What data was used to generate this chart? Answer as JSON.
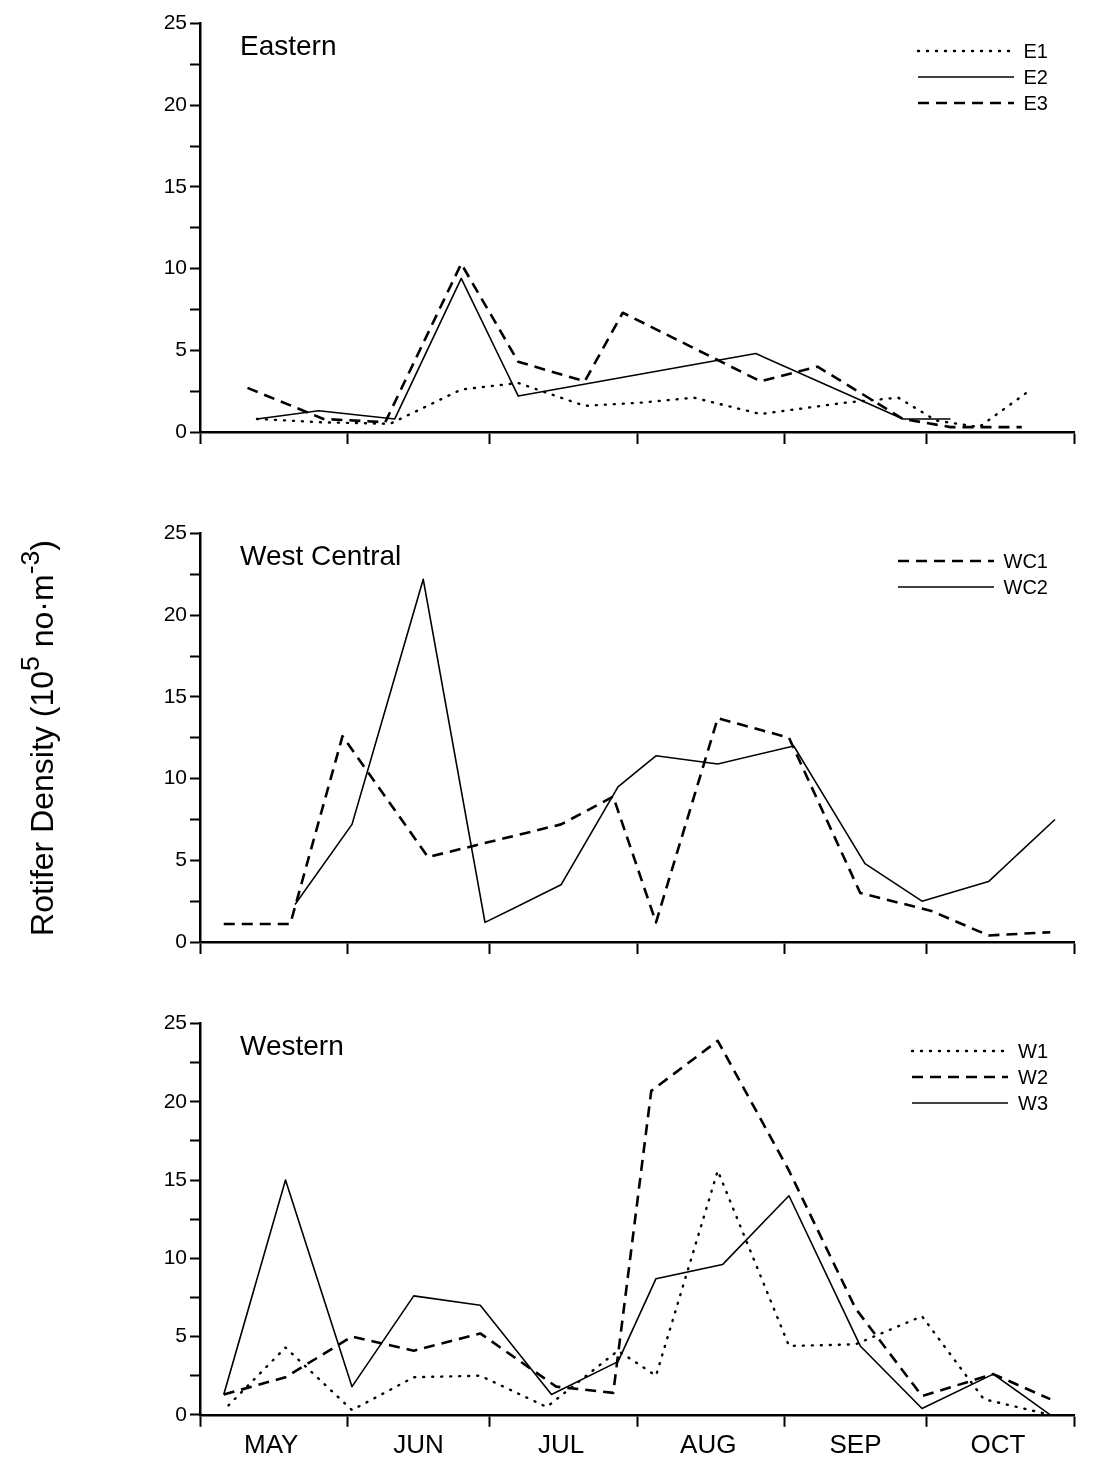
{
  "chart_data": [
    {
      "type": "line",
      "title": "Eastern",
      "xlim": [
        "--05-01",
        "--11-01"
      ],
      "xticks": [
        {
          "value": "--05-01",
          "label": null
        },
        {
          "value": "--06-01",
          "label": null
        },
        {
          "value": "--07-01",
          "label": null
        },
        {
          "value": "--08-01",
          "label": null
        },
        {
          "value": "--09-01",
          "label": null
        },
        {
          "value": "--10-01",
          "label": null
        },
        {
          "value": "--11-01",
          "label": null
        }
      ],
      "ylim": [
        0,
        25
      ],
      "yticks": [
        0,
        {
          "value": 2.5,
          "label": null
        },
        5,
        {
          "value": 7.5,
          "label": null
        },
        10,
        {
          "value": 12.5,
          "label": null
        },
        15,
        {
          "value": 17.5,
          "label": null
        },
        20,
        {
          "value": 22.5,
          "label": null
        },
        25
      ],
      "tick_labels": "y",
      "legend": "top right",
      "series": [
        {
          "name": "E1",
          "color": "#000000",
          "line_style": "dotted",
          "x": [
            "--05-13",
            "--05-26",
            "--06-10",
            "--06-25",
            "--07-07",
            "--07-21",
            "--08-02",
            "--08-13",
            "--08-27",
            "--09-14",
            "--09-25",
            "--10-03",
            "--10-12",
            "--10-22"
          ],
          "values": [
            0.8,
            0.6,
            0.5,
            2.6,
            3.0,
            1.6,
            1.8,
            2.1,
            1.1,
            1.8,
            2.1,
            0.7,
            0.3,
            2.4
          ]
        },
        {
          "name": "E2",
          "color": "#000000",
          "line_style": "solid",
          "x": [
            "--05-13",
            "--05-26",
            "--06-11",
            "--06-25",
            "--07-07",
            "--08-26",
            "--09-26",
            "--10-06"
          ],
          "values": [
            0.8,
            1.3,
            0.8,
            9.4,
            2.2,
            4.8,
            0.8,
            0.8
          ]
        },
        {
          "name": "E3",
          "color": "#000000",
          "line_style": "dashed",
          "x": [
            "--05-11",
            "--05-27",
            "--06-09",
            "--06-25",
            "--07-07",
            "--07-21",
            "--07-29",
            "--08-27",
            "--09-08",
            "--09-26",
            "--10-06",
            "--10-21"
          ],
          "values": [
            2.7,
            0.8,
            0.6,
            10.3,
            4.3,
            3.1,
            7.3,
            3.1,
            4.0,
            0.8,
            0.3,
            0.3
          ]
        }
      ]
    },
    {
      "type": "line",
      "title": "West Central",
      "ylabel": "Rotifer Density (10$^{5}$ no·m$^{-3}$)",
      "xlim": [
        "--05-01",
        "--11-01"
      ],
      "xticks": [
        {
          "value": "--05-01",
          "label": null
        },
        {
          "value": "--06-01",
          "label": null
        },
        {
          "value": "--07-01",
          "label": null
        },
        {
          "value": "--08-01",
          "label": null
        },
        {
          "value": "--09-01",
          "label": null
        },
        {
          "value": "--10-01",
          "label": null
        },
        {
          "value": "--11-01",
          "label": null
        }
      ],
      "ylim": [
        0,
        25
      ],
      "yticks": [
        0,
        {
          "value": 2.5,
          "label": null
        },
        5,
        {
          "value": 7.5,
          "label": null
        },
        10,
        {
          "value": 12.5,
          "label": null
        },
        15,
        {
          "value": 17.5,
          "label": null
        },
        20,
        {
          "value": 22.5,
          "label": null
        },
        25
      ],
      "tick_labels": "y",
      "legend": "top right",
      "series": [
        {
          "name": "WC1",
          "color": "#000000",
          "line_style": "dashed",
          "x": [
            "--05-06",
            "--05-20",
            "--05-31",
            "--06-18",
            "--07-16",
            "--07-27",
            "--08-05",
            "--08-18",
            "--09-02",
            "--09-17",
            "--10-02",
            "--10-14",
            "--10-27"
          ],
          "values": [
            1.1,
            1.1,
            12.6,
            5.2,
            7.2,
            8.9,
            1.2,
            13.7,
            12.5,
            3.0,
            1.9,
            0.4,
            0.6
          ]
        },
        {
          "name": "WC2",
          "color": "#000000",
          "line_style": "solid",
          "x": [
            "--05-21",
            "--06-02",
            "--06-17",
            "--06-30",
            "--07-16",
            "--07-28",
            "--08-05",
            "--08-18",
            "--09-03",
            "--09-18",
            "--09-30",
            "--10-14",
            "--10-28"
          ],
          "values": [
            2.3,
            7.2,
            22.2,
            1.2,
            3.5,
            9.5,
            11.4,
            10.9,
            12.0,
            4.8,
            2.5,
            3.7,
            7.5
          ]
        }
      ]
    },
    {
      "type": "line",
      "title": "Western",
      "xlim": [
        "--05-01",
        "--11-01"
      ],
      "xticks": [
        {
          "value": "--05-01",
          "label": null
        },
        {
          "value": "--05-16",
          "label": "MAY"
        },
        {
          "value": "--06-01",
          "label": null
        },
        {
          "value": "--06-16",
          "label": "JUN"
        },
        {
          "value": "--07-01",
          "label": null
        },
        {
          "value": "--07-16",
          "label": "JUL"
        },
        {
          "value": "--08-01",
          "label": null
        },
        {
          "value": "--08-16",
          "label": "AUG"
        },
        {
          "value": "--09-01",
          "label": null
        },
        {
          "value": "--09-16",
          "label": "SEP"
        },
        {
          "value": "--10-01",
          "label": null
        },
        {
          "value": "--10-16",
          "label": "OCT"
        },
        {
          "value": "--11-01",
          "label": null
        }
      ],
      "ylim": [
        0,
        25
      ],
      "yticks": [
        0,
        {
          "value": 2.5,
          "label": null
        },
        5,
        {
          "value": 7.5,
          "label": null
        },
        10,
        {
          "value": 12.5,
          "label": null
        },
        15,
        {
          "value": 17.5,
          "label": null
        },
        20,
        {
          "value": 22.5,
          "label": null
        },
        25
      ],
      "legend": "top right",
      "series": [
        {
          "name": "W1",
          "color": "#000000",
          "line_style": "dotted",
          "x": [
            "--05-07",
            "--05-19",
            "--06-02",
            "--06-15",
            "--06-29",
            "--07-13",
            "--07-28",
            "--08-05",
            "--08-18",
            "--09-02",
            "--09-16",
            "--09-30",
            "--10-13",
            "--10-27"
          ],
          "values": [
            0.6,
            4.3,
            0.3,
            2.4,
            2.5,
            0.5,
            4.1,
            2.5,
            15.6,
            4.4,
            4.5,
            6.3,
            1.0,
            0.0
          ]
        },
        {
          "name": "W2",
          "color": "#000000",
          "line_style": "dashed",
          "x": [
            "--05-06",
            "--05-19",
            "--06-02",
            "--06-15",
            "--06-29",
            "--07-15",
            "--07-27",
            "--08-04",
            "--08-18",
            "--09-02",
            "--09-16",
            "--09-30",
            "--10-15",
            "--10-27"
          ],
          "values": [
            1.3,
            2.4,
            5.0,
            4.1,
            5.2,
            1.8,
            1.4,
            20.7,
            23.9,
            15.6,
            6.8,
            1.2,
            2.6,
            1.0
          ]
        },
        {
          "name": "W3",
          "color": "#000000",
          "line_style": "solid",
          "x": [
            "--05-06",
            "--05-19",
            "--06-02",
            "--06-15",
            "--06-29",
            "--07-14",
            "--07-28",
            "--08-05",
            "--08-19",
            "--09-02",
            "--09-17",
            "--09-30",
            "--10-15",
            "--10-27"
          ],
          "values": [
            1.3,
            15.0,
            1.8,
            7.6,
            7.0,
            1.3,
            3.4,
            8.7,
            9.6,
            14.0,
            4.4,
            0.4,
            2.6,
            0.0
          ]
        }
      ]
    }
  ]
}
